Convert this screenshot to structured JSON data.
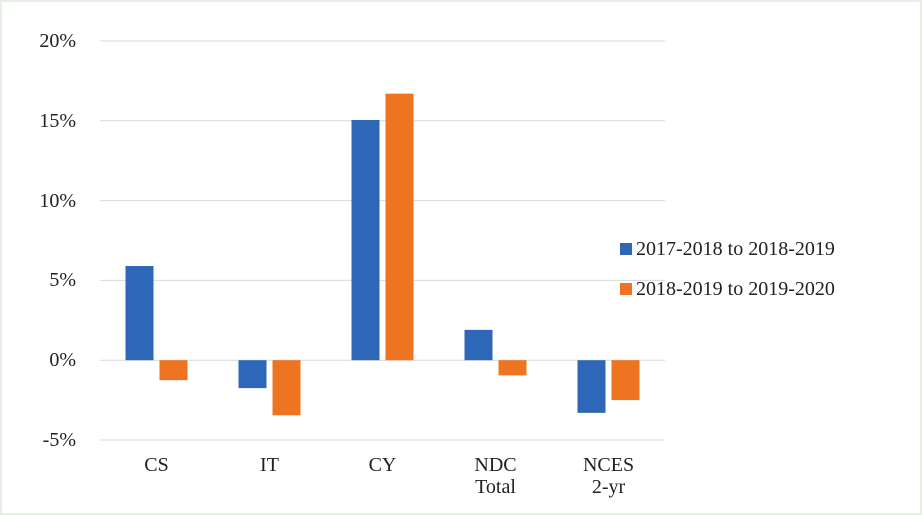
{
  "chart_data": {
    "type": "bar",
    "categories": [
      "CS",
      "IT",
      "CY",
      "NDC Total",
      "NCES 2-yr"
    ],
    "series": [
      {
        "name": "2017-2018 to 2018-2019",
        "color": "#2e67b8",
        "values": [
          5.9,
          -1.75,
          15.05,
          1.9,
          -3.3
        ]
      },
      {
        "name": "2018-2019 to 2019-2020",
        "color": "#ee7422",
        "values": [
          -1.25,
          -3.45,
          16.7,
          -0.95,
          -2.5
        ]
      }
    ],
    "ylim": [
      -5,
      20
    ],
    "yticks": [
      {
        "value": -5,
        "label": "-5%"
      },
      {
        "value": 0,
        "label": "0%"
      },
      {
        "value": 5,
        "label": "5%"
      },
      {
        "value": 10,
        "label": "10%"
      },
      {
        "value": 15,
        "label": "15%"
      },
      {
        "value": 20,
        "label": "20%"
      }
    ],
    "grid": true,
    "legend": "right"
  }
}
